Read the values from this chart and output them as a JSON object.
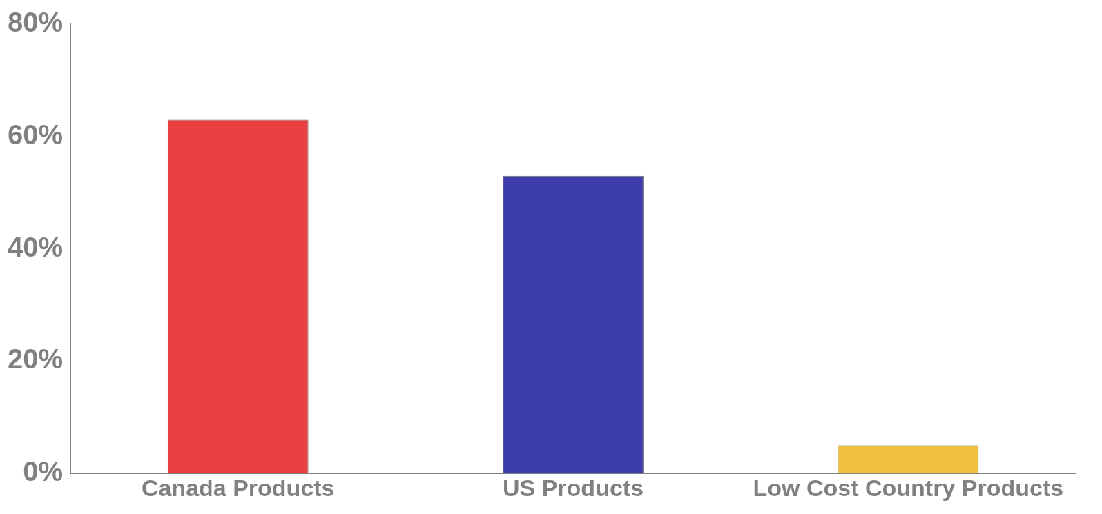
{
  "chart_data": {
    "type": "bar",
    "categories": [
      "Canada Products",
      "US Products",
      "Low Cost Country Products"
    ],
    "values": [
      63,
      53,
      5
    ],
    "colors": [
      "#e84040",
      "#3e3eaa",
      "#f0c040"
    ],
    "ylim": [
      0,
      80
    ],
    "yticks": [
      {
        "value": 0,
        "label": "0%"
      },
      {
        "value": 20,
        "label": "20%"
      },
      {
        "value": 40,
        "label": "40%"
      },
      {
        "value": 60,
        "label": "60%"
      },
      {
        "value": 80,
        "label": "80%"
      }
    ],
    "grid": false,
    "legend": false
  }
}
